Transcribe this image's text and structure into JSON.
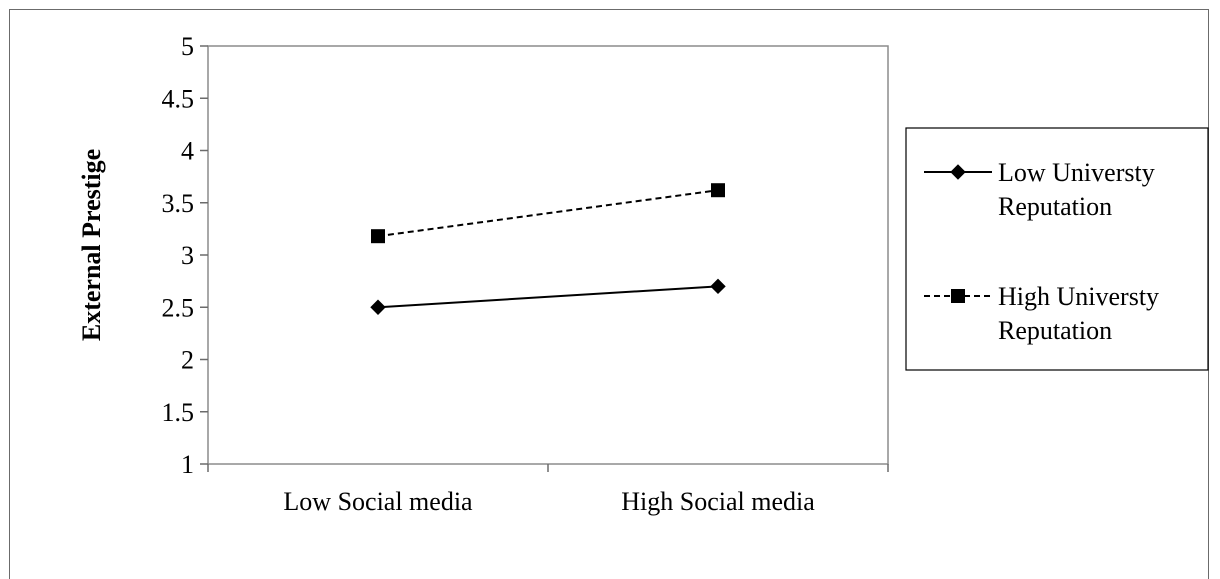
{
  "chart_data": {
    "type": "line",
    "title": "",
    "xlabel": "",
    "ylabel": "External Prestige",
    "categories": [
      "Low Social media",
      "High Social media"
    ],
    "ylim": [
      1,
      5
    ],
    "yticks": [
      "1",
      "1.5",
      "2",
      "2.5",
      "3",
      "3.5",
      "4",
      "4.5",
      "5"
    ],
    "grid": false,
    "legend_position": "right",
    "series": [
      {
        "name": "Low Universty Reputation",
        "name_lines": [
          "Low Universty",
          "Reputation"
        ],
        "values": [
          2.5,
          2.7
        ],
        "line_style": "solid",
        "marker": "diamond",
        "color": "#000000"
      },
      {
        "name": "High Universty Reputation",
        "name_lines": [
          "High Universty",
          "Reputation"
        ],
        "values": [
          3.18,
          3.62
        ],
        "line_style": "dashed",
        "marker": "square",
        "color": "#000000"
      }
    ]
  }
}
